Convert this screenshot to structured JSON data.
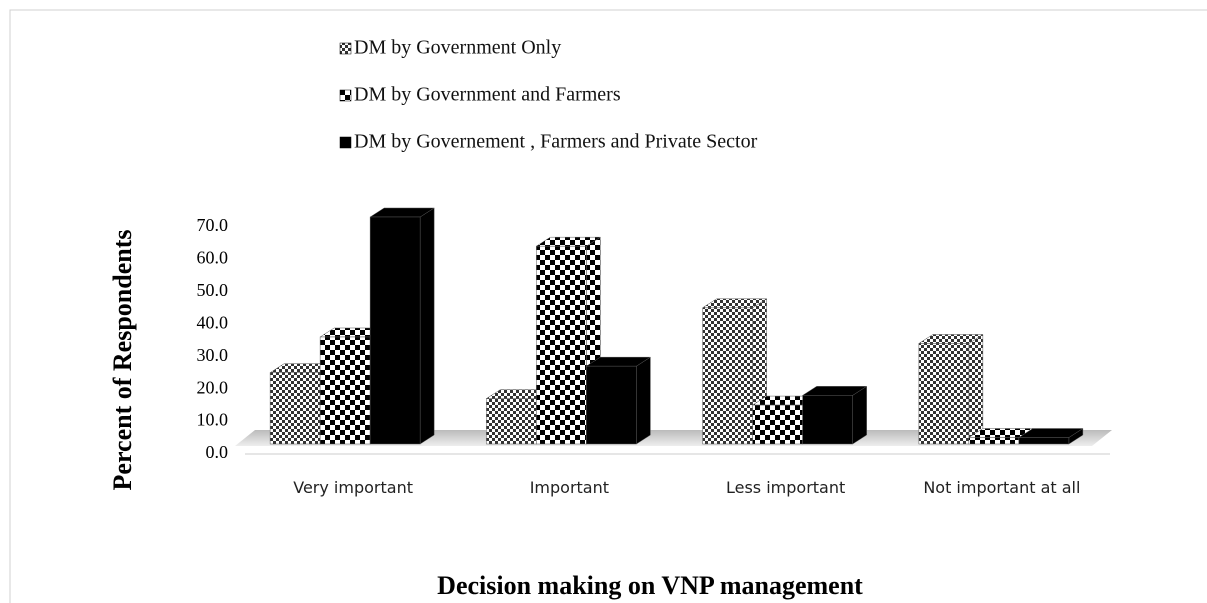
{
  "chart_data": {
    "type": "bar3d",
    "x_label": "Decision making on VNP management",
    "y_label": "Percent of  Respondents",
    "categories": [
      "Very important",
      "Important",
      "Less important",
      "Not important at all"
    ],
    "series": [
      {
        "name": "DM by Government Only",
        "color": "#ffffff",
        "pattern": "fine-checker",
        "values": [
          22,
          14,
          42,
          31
        ]
      },
      {
        "name": "DM by Government and Farmers",
        "color": "#ffffff",
        "pattern": "checker",
        "values": [
          33,
          61,
          12,
          2
        ]
      },
      {
        "name": "DM by Governement , Farmers and Private Sector",
        "color": "#000000",
        "pattern": "solid",
        "values": [
          70,
          24,
          15,
          2
        ]
      }
    ],
    "ylim": [
      0,
      70
    ],
    "yticks": [
      {
        "value": 0,
        "label": "0.0"
      },
      {
        "value": 10,
        "label": "10.0"
      },
      {
        "value": 20,
        "label": "20.0"
      },
      {
        "value": 30,
        "label": "30.0"
      },
      {
        "value": 40,
        "label": "40.0"
      },
      {
        "value": 50,
        "label": "50.0"
      },
      {
        "value": 60,
        "label": "60.0"
      },
      {
        "value": 70,
        "label": "70.0"
      }
    ],
    "legend": "top"
  }
}
